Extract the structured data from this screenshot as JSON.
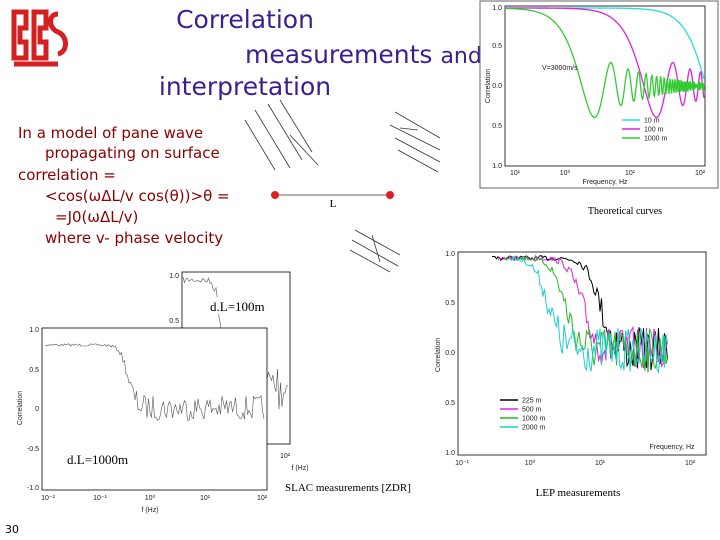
{
  "slide": {
    "title": {
      "line1": "Correlation",
      "line2a": "measurements",
      "line2b": "and",
      "line3": "interpretation"
    },
    "text_lines": [
      "In a model of pane wave",
      "propagating on surface",
      "correlation =",
      "<cos(ωΔL/v cos(θ))>θ =",
      "=J0(ωΔL/v)",
      "where v- phase velocity"
    ],
    "diagram_label": "L",
    "theory_plot": {
      "yticks": [
        "1.0",
        "0.5",
        "0.0",
        "0.5",
        "1.0"
      ],
      "xticks": [
        "10¹",
        "10⁰",
        "10¹",
        "10²"
      ],
      "ylabel": "Correlation",
      "xlabel": "Frequency, Hz",
      "annotation": "V=3000m/s",
      "legend": [
        "10 m",
        "100 m",
        "1000 m"
      ],
      "caption": "Theoretical curves"
    },
    "slac_back": {
      "yticks": [
        "1.0",
        "0.5"
      ],
      "xticks": [
        "10²"
      ],
      "xlabel": "f (Hz)",
      "annotation": "d.L=100m"
    },
    "slac_front": {
      "yticks": [
        "1.0",
        "0.5",
        "0",
        "-0.5",
        "-1.0"
      ],
      "xticks": [
        "10⁻²",
        "10⁻¹",
        "10⁰",
        "10¹",
        "10²"
      ],
      "ylabel": "Correlation",
      "xlabel": "f (Hz)",
      "annotation": "d.L=1000m"
    },
    "slac_caption": "SLAC measurements [ZDR]",
    "lep_plot": {
      "yticks": [
        "1.0",
        "0.5",
        "0.0",
        "0.5",
        "1.0"
      ],
      "xticks": [
        "10⁻¹",
        "10⁰",
        "10¹",
        "10²"
      ],
      "ylabel": "Correlation",
      "xlabel": "Frequency, Hz",
      "legend": [
        "225 m",
        "500 m",
        "1000 m",
        "2000 m"
      ],
      "caption": "LEP measurements"
    },
    "page_number": "30"
  }
}
